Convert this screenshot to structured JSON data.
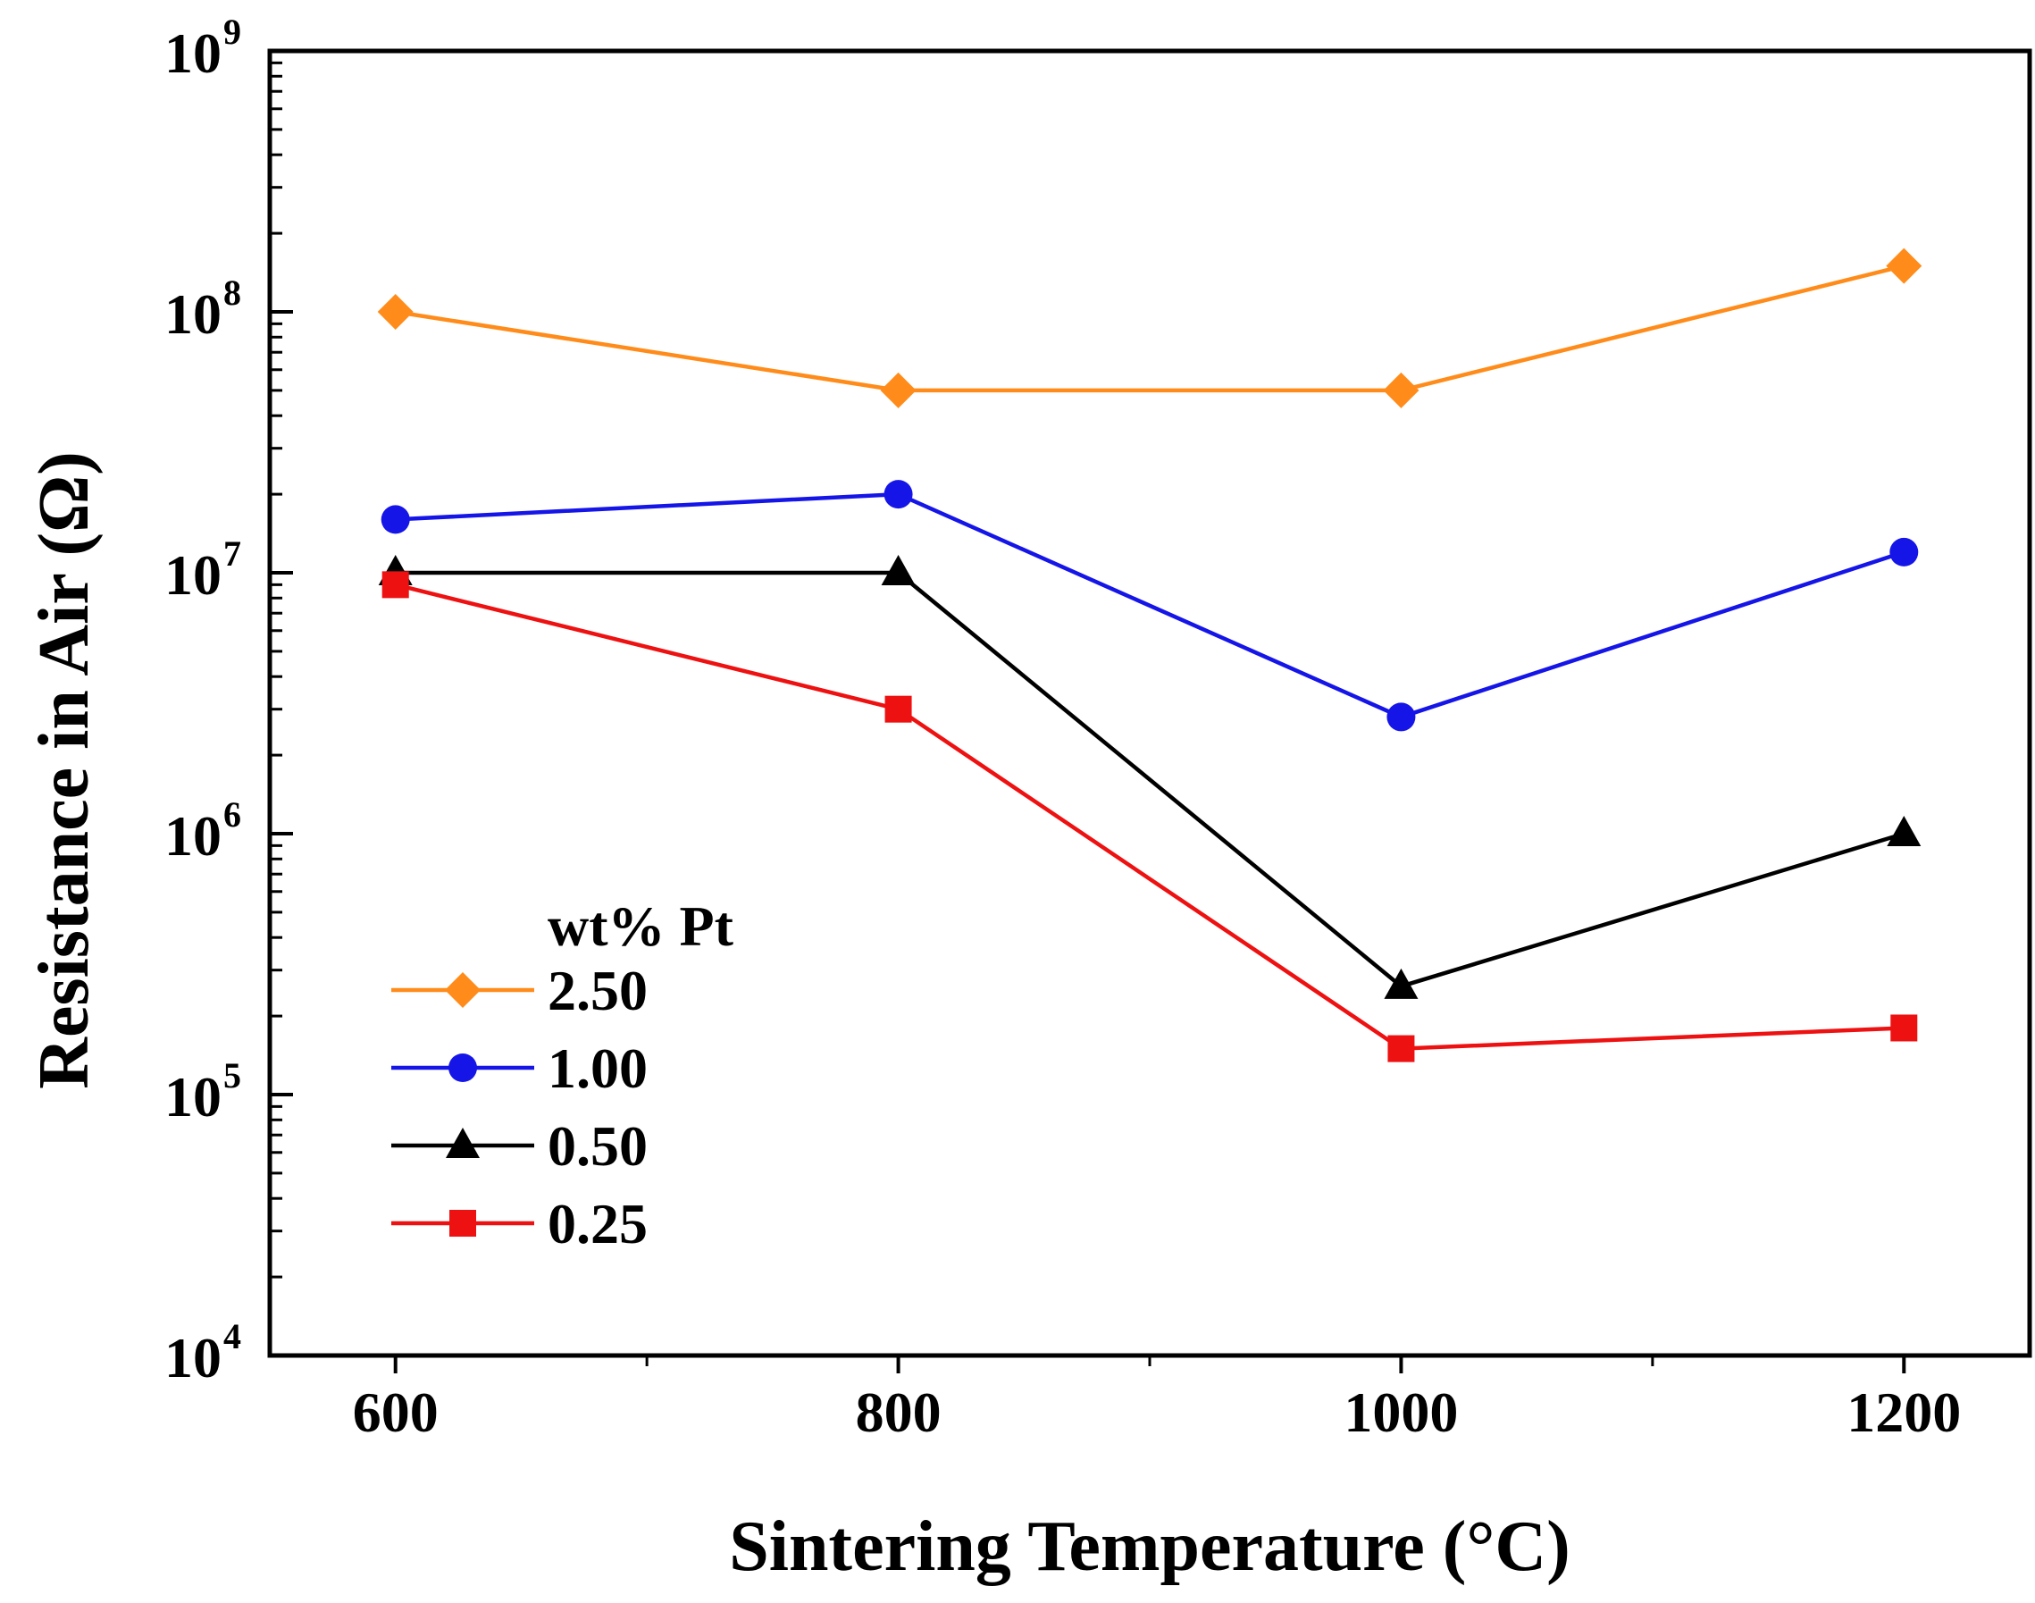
{
  "chart_data": {
    "type": "line",
    "title": "",
    "xlabel": "Sintering Temperature (°C)",
    "ylabel": "Resistance in Air (Ω)",
    "x": [
      600,
      800,
      1000,
      1200
    ],
    "xlim": [
      550,
      1250
    ],
    "x_ticks": [
      "600",
      "800",
      "1000",
      "1200"
    ],
    "yscale": "log",
    "ylim": [
      10000,
      1000000000
    ],
    "y_ticks": [
      {
        "base": "10",
        "exp": "4",
        "value": 10000
      },
      {
        "base": "10",
        "exp": "5",
        "value": 100000
      },
      {
        "base": "10",
        "exp": "6",
        "value": 1000000
      },
      {
        "base": "10",
        "exp": "7",
        "value": 10000000
      },
      {
        "base": "10",
        "exp": "8",
        "value": 100000000
      },
      {
        "base": "10",
        "exp": "9",
        "value": 1000000000
      }
    ],
    "legend_title": "wt% Pt",
    "legend_position": "lower-left",
    "series": [
      {
        "name": "2.50",
        "color": "#FF8C1A",
        "marker": "diamond",
        "values": [
          100000000,
          50000000,
          50000000,
          150000000
        ]
      },
      {
        "name": "1.00",
        "color": "#1515E8",
        "marker": "circle",
        "values": [
          16000000,
          20000000,
          2800000,
          12000000
        ]
      },
      {
        "name": "0.50",
        "color": "#000000",
        "marker": "triangle",
        "values": [
          10000000,
          10000000,
          260000,
          1000000
        ]
      },
      {
        "name": "0.25",
        "color": "#EE1111",
        "marker": "square",
        "values": [
          9000000,
          3000000,
          150000,
          180000
        ]
      }
    ]
  }
}
